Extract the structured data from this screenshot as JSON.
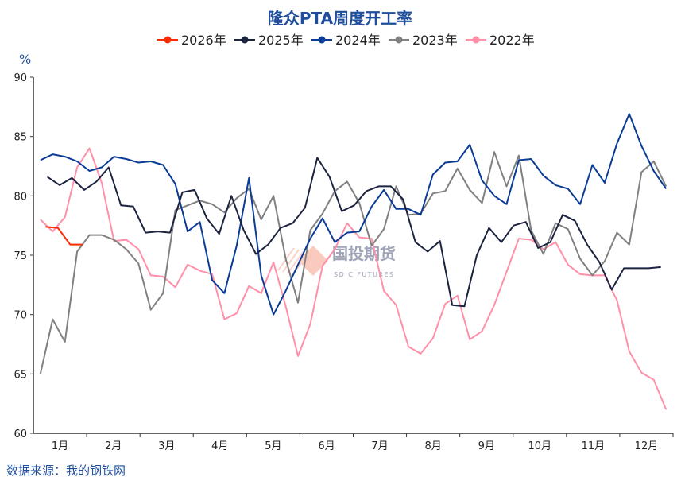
{
  "chart_data": {
    "type": "line",
    "title": "隆众PTA周度开工率",
    "ylabel": "%",
    "xlabel": "",
    "ylim": [
      60,
      90
    ],
    "yticks": [
      60,
      65,
      70,
      75,
      80,
      85,
      90
    ],
    "x_unit": "day of year, weekly step 7",
    "months": [
      "1月",
      "2月",
      "3月",
      "4月",
      "5月",
      "6月",
      "7月",
      "8月",
      "9月",
      "10月",
      "11月",
      "12月"
    ],
    "legend_position": "top-center",
    "grid": false,
    "source": "数据来源：我的钢铁网",
    "watermark": {
      "cn": "国投期货",
      "en": "SDIC FUTURES"
    },
    "series": [
      {
        "name": "2026年",
        "color": "#ff2a00",
        "start_day": 7,
        "values": [
          77.4,
          77.3,
          75.9,
          75.9
        ]
      },
      {
        "name": "2025年",
        "color": "#1c2340",
        "start_day": 8,
        "values": [
          81.6,
          80.9,
          81.5,
          80.5,
          81.2,
          82.4,
          79.2,
          79.1,
          76.9,
          77.0,
          76.9,
          80.3,
          80.5,
          78.1,
          76.8,
          80.0,
          77.1,
          75.1,
          75.9,
          77.3,
          77.7,
          79.0,
          83.2,
          81.6,
          78.7,
          79.2,
          80.4,
          80.8,
          80.8,
          79.7,
          76.1,
          75.3,
          76.2,
          70.8,
          70.7,
          75.0,
          77.3,
          76.1,
          77.5,
          77.8,
          75.6,
          76.1,
          78.4,
          77.9,
          75.9,
          74.4,
          72.1,
          73.9,
          73.9,
          73.9,
          74.0
        ]
      },
      {
        "name": "2024年",
        "color": "#0a3c96",
        "start_day": 4,
        "values": [
          83.0,
          83.5,
          83.3,
          82.9,
          82.1,
          82.4,
          83.3,
          83.1,
          82.8,
          82.9,
          82.6,
          81.0,
          77.0,
          77.8,
          72.9,
          71.8,
          75.8,
          81.5,
          73.3,
          70.0,
          72.0,
          74.2,
          76.4,
          78.1,
          76.1,
          76.9,
          77.0,
          79.1,
          80.5,
          78.9,
          78.9,
          78.4,
          81.8,
          82.8,
          82.9,
          84.3,
          81.3,
          80.0,
          79.3,
          83.0,
          83.1,
          81.7,
          80.9,
          80.6,
          79.3,
          82.6,
          81.1,
          84.4,
          86.9,
          84.2,
          82.1,
          80.6
        ]
      },
      {
        "name": "2023年",
        "color": "#808080",
        "start_day": 4,
        "values": [
          65.0,
          69.6,
          67.7,
          75.3,
          76.7,
          76.7,
          76.3,
          75.5,
          74.3,
          70.4,
          71.8,
          78.8,
          79.2,
          79.6,
          79.3,
          78.6,
          79.8,
          80.6,
          78.0,
          80.0,
          74.7,
          71.0,
          77.1,
          78.5,
          80.4,
          81.2,
          79.4,
          75.8,
          77.2,
          80.8,
          78.4,
          78.5,
          80.2,
          80.4,
          82.3,
          80.5,
          79.4,
          83.7,
          80.8,
          83.4,
          77.1,
          75.1,
          77.7,
          77.2,
          74.7,
          73.3,
          74.5,
          76.9,
          75.9,
          82.0,
          82.9,
          80.8
        ]
      },
      {
        "name": "2022年",
        "color": "#ff90a8",
        "start_day": 4,
        "values": [
          78.0,
          77.0,
          78.2,
          82.4,
          84.0,
          81.1,
          76.2,
          76.3,
          75.5,
          73.3,
          73.2,
          72.3,
          74.2,
          73.7,
          73.4,
          69.6,
          70.1,
          72.4,
          71.8,
          74.4,
          70.7,
          66.5,
          69.2,
          74.1,
          75.5,
          77.7,
          76.5,
          76.4,
          72.0,
          70.8,
          67.3,
          66.7,
          68.0,
          70.9,
          71.6,
          67.9,
          68.6,
          70.8,
          73.6,
          76.4,
          76.3,
          75.5,
          76.1,
          74.2,
          73.4,
          73.3,
          73.3,
          71.2,
          66.9,
          65.1,
          64.5,
          62.0
        ]
      }
    ]
  }
}
